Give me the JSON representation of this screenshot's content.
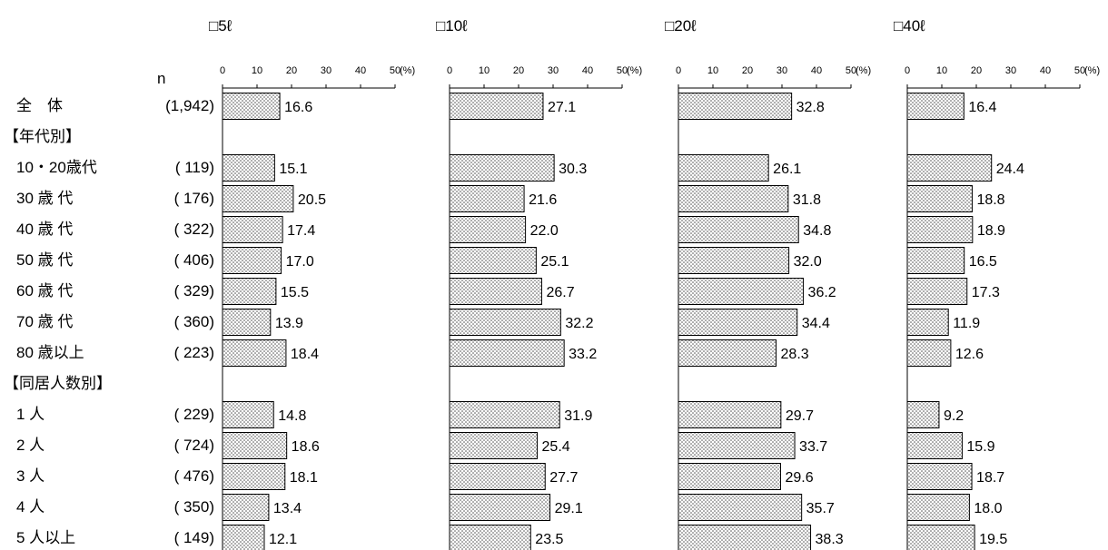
{
  "chart_data": {
    "type": "bar",
    "orientation": "horizontal",
    "n_header": "n",
    "unit_label": "(%)",
    "xlim": [
      0,
      50
    ],
    "xticks": [
      0,
      10,
      20,
      30,
      40,
      50
    ],
    "legend_marker": "□",
    "rows": [
      {
        "label": "全　体",
        "n": "(1,942)",
        "kind": "data"
      },
      {
        "label": "【年代別】",
        "n": "",
        "kind": "header"
      },
      {
        "label": "10・20歳代",
        "n": "( 119)",
        "kind": "data"
      },
      {
        "label": "30 歳 代",
        "n": "( 176)",
        "kind": "data"
      },
      {
        "label": "40 歳 代",
        "n": "( 322)",
        "kind": "data"
      },
      {
        "label": "50 歳 代",
        "n": "( 406)",
        "kind": "data"
      },
      {
        "label": "60 歳 代",
        "n": "( 329)",
        "kind": "data"
      },
      {
        "label": "70 歳 代",
        "n": "( 360)",
        "kind": "data"
      },
      {
        "label": "80 歳以上",
        "n": "( 223)",
        "kind": "data"
      },
      {
        "label": "【同居人数別】",
        "n": "",
        "kind": "header"
      },
      {
        "label": "1 人",
        "n": "( 229)",
        "kind": "data"
      },
      {
        "label": "2 人",
        "n": "( 724)",
        "kind": "data"
      },
      {
        "label": "3 人",
        "n": "( 476)",
        "kind": "data"
      },
      {
        "label": "4 人",
        "n": "( 350)",
        "kind": "data"
      },
      {
        "label": "5 人以上",
        "n": "( 149)",
        "kind": "data"
      }
    ],
    "series": [
      {
        "name": "5ℓ",
        "values": [
          16.6,
          null,
          15.1,
          20.5,
          17.4,
          17.0,
          15.5,
          13.9,
          18.4,
          null,
          14.8,
          18.6,
          18.1,
          13.4,
          12.1
        ]
      },
      {
        "name": "10ℓ",
        "values": [
          27.1,
          null,
          30.3,
          21.6,
          22.0,
          25.1,
          26.7,
          32.2,
          33.2,
          null,
          31.9,
          25.4,
          27.7,
          29.1,
          23.5
        ]
      },
      {
        "name": "20ℓ",
        "values": [
          32.8,
          null,
          26.1,
          31.8,
          34.8,
          32.0,
          36.2,
          34.4,
          28.3,
          null,
          29.7,
          33.7,
          29.6,
          35.7,
          38.3
        ]
      },
      {
        "name": "40ℓ",
        "values": [
          16.4,
          null,
          24.4,
          18.8,
          18.9,
          16.5,
          17.3,
          11.9,
          12.6,
          null,
          9.2,
          15.9,
          18.7,
          18.0,
          19.5
        ]
      }
    ]
  }
}
